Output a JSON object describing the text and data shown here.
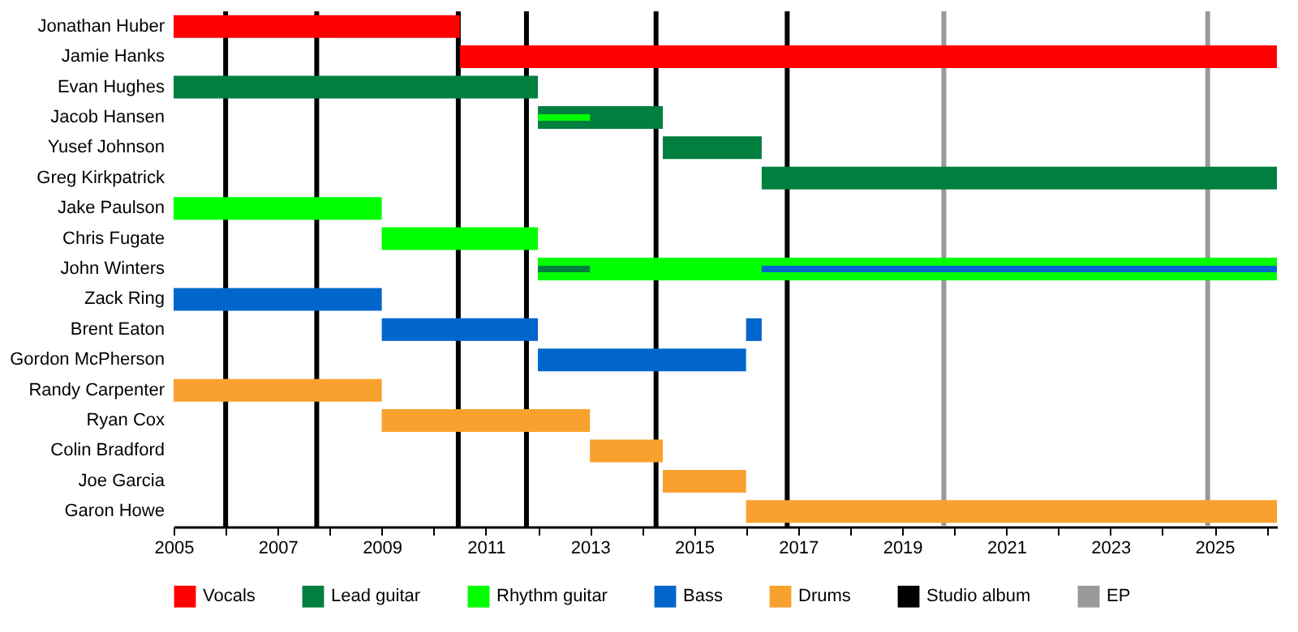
{
  "chart_data": {
    "type": "bar",
    "orientation": "horizontal",
    "categories": [
      "Jonathan Huber",
      "Jamie Hanks",
      "Evan Hughes",
      "Jacob Hansen",
      "Yusef Johnson",
      "Greg Kirkpatrick",
      "Jake Paulson",
      "Chris Fugate",
      "John Winters",
      "Zack Ring",
      "Brent Eaton",
      "Gordon McPherson",
      "Randy Carpenter",
      "Ryan Cox",
      "Colin Bradford",
      "Joe Garcia",
      "Garon Howe"
    ],
    "series": [
      {
        "name": "Vocals",
        "color": "#ff0000",
        "base": [
          2005,
          2010.5,
          null,
          null,
          null,
          null,
          null,
          null,
          null,
          null,
          null,
          null,
          null,
          null,
          null,
          null,
          null
        ],
        "values": [
          5.5,
          15.7,
          null,
          null,
          null,
          null,
          null,
          null,
          null,
          null,
          null,
          null,
          null,
          null,
          null,
          null,
          null
        ]
      },
      {
        "name": "Lead guitar",
        "color": "#007f3f",
        "base": [
          null,
          null,
          2005,
          2012,
          2014.4,
          2016.3,
          null,
          null,
          null,
          null,
          null,
          null,
          null,
          null,
          null,
          null,
          null
        ],
        "values": [
          null,
          null,
          7,
          2.4,
          1.9,
          9.9,
          null,
          null,
          null,
          null,
          null,
          null,
          null,
          null,
          null,
          null,
          null
        ]
      },
      {
        "name": "Rhythm guitar",
        "color": "#00ff00",
        "base": [
          null,
          null,
          null,
          null,
          null,
          null,
          2005,
          2009,
          2012,
          null,
          null,
          null,
          null,
          null,
          null,
          null,
          null
        ],
        "values": [
          null,
          null,
          null,
          null,
          null,
          null,
          4,
          3,
          14.2,
          null,
          null,
          null,
          null,
          null,
          null,
          null,
          null
        ]
      },
      {
        "name": "Bass",
        "color": "#0066cc",
        "base": [
          null,
          null,
          null,
          null,
          null,
          null,
          null,
          null,
          null,
          2005,
          2009,
          2012,
          null,
          null,
          null,
          null,
          null
        ],
        "values": [
          null,
          null,
          null,
          null,
          null,
          null,
          null,
          null,
          null,
          4,
          3,
          4,
          null,
          null,
          null,
          null,
          null
        ]
      },
      {
        "color": "#0066cc",
        "base": [
          null,
          null,
          null,
          null,
          null,
          null,
          null,
          null,
          null,
          null,
          2016,
          null,
          null,
          null,
          null,
          null,
          null
        ],
        "values": [
          null,
          null,
          null,
          null,
          null,
          null,
          null,
          null,
          null,
          null,
          0.3,
          null,
          null,
          null,
          null,
          null,
          null
        ]
      },
      {
        "name": "Drums",
        "color": "#f9a12e",
        "base": [
          null,
          null,
          null,
          null,
          null,
          null,
          null,
          null,
          null,
          null,
          null,
          null,
          2005,
          2009,
          2013,
          2014.4,
          2016
        ],
        "values": [
          null,
          null,
          null,
          null,
          null,
          null,
          null,
          null,
          null,
          null,
          null,
          null,
          4,
          4,
          1.4,
          1.6,
          10.2
        ]
      },
      {
        "color": "#00ff00",
        "base": [
          null,
          null,
          null,
          2012,
          null,
          null,
          null,
          null,
          null,
          null,
          null,
          null,
          null,
          null,
          null,
          null,
          null
        ],
        "values": [
          null,
          null,
          null,
          1,
          null,
          null,
          null,
          null,
          null,
          null,
          null,
          null,
          null,
          null,
          null,
          null,
          null
        ]
      },
      {
        "color": "#007f3f",
        "base": [
          null,
          null,
          null,
          null,
          null,
          null,
          null,
          null,
          2012,
          null,
          null,
          null,
          null,
          null,
          null,
          null,
          null
        ],
        "values": [
          null,
          null,
          null,
          null,
          null,
          null,
          null,
          null,
          1,
          null,
          null,
          null,
          null,
          null,
          null,
          null,
          null
        ]
      },
      {
        "color": "#0066cc",
        "base": [
          null,
          null,
          null,
          null,
          null,
          null,
          null,
          null,
          2016.3,
          null,
          null,
          null,
          null,
          null,
          null,
          null,
          null
        ],
        "values": [
          null,
          null,
          null,
          null,
          null,
          null,
          null,
          null,
          9.9,
          null,
          null,
          null,
          null,
          null,
          null,
          null,
          null
        ]
      }
    ],
    "ref_lines": [
      {
        "axis": "x",
        "value": 2006,
        "label": "Studio album",
        "color": "#000000"
      },
      {
        "axis": "x",
        "value": 2007.75,
        "color": "#000000"
      },
      {
        "axis": "x",
        "value": 2010.47,
        "color": "#000000"
      },
      {
        "axis": "x",
        "value": 2011.78,
        "color": "#000000"
      },
      {
        "axis": "x",
        "value": 2014.27,
        "color": "#000000"
      },
      {
        "axis": "x",
        "value": 2016.79,
        "color": "#000000"
      },
      {
        "axis": "x",
        "value": 2019.8,
        "label": "EP",
        "color": "#999999"
      },
      {
        "axis": "x",
        "value": 2024.87,
        "color": "#999999"
      }
    ],
    "xlim": [
      2005,
      2026.2
    ],
    "xticks": [
      2005,
      {
        "value": 2006,
        "label": null
      },
      2007,
      {
        "value": 2008,
        "label": null
      },
      2009,
      {
        "value": 2010,
        "label": null
      },
      2011,
      {
        "value": 2012,
        "label": null
      },
      2013,
      {
        "value": 2014,
        "label": null
      },
      2015,
      {
        "value": 2016,
        "label": null
      },
      2017,
      {
        "value": 2018,
        "label": null
      },
      2019,
      {
        "value": 2020,
        "label": null
      },
      2021,
      {
        "value": 2022,
        "label": null
      },
      2023,
      {
        "value": 2024,
        "label": null
      },
      2025,
      {
        "value": 2026,
        "label": null
      }
    ],
    "grid": false,
    "legend": "bottom"
  }
}
